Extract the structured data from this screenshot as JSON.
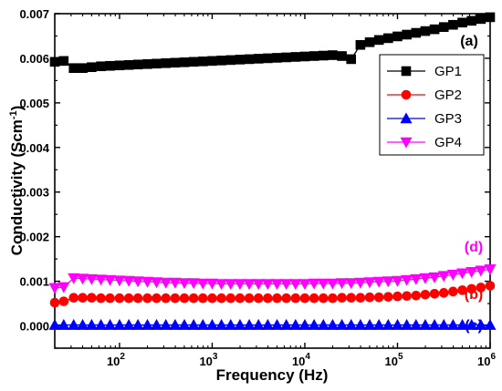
{
  "chart_data": {
    "type": "scatter",
    "title": "",
    "xlabel": "Frequency (Hz)",
    "ylabel_main": "Conductivity (Scm",
    "ylabel_sup": "-1",
    "ylabel_close": ")",
    "xscale": "log",
    "xlim": [
      20,
      1000000
    ],
    "ylim": [
      -0.0005,
      0.007
    ],
    "y_ticks": [
      "0.000",
      "0.001",
      "0.002",
      "0.003",
      "0.004",
      "0.005",
      "0.006",
      "0.007"
    ],
    "y_tick_values": [
      0,
      0.001,
      0.002,
      0.003,
      0.004,
      0.005,
      0.006,
      0.007
    ],
    "x_ticks": [
      {
        "base": "10",
        "exp": "2",
        "value": 100
      },
      {
        "base": "10",
        "exp": "3",
        "value": 1000
      },
      {
        "base": "10",
        "exp": "4",
        "value": 10000
      },
      {
        "base": "10",
        "exp": "5",
        "value": 100000
      },
      {
        "base": "10",
        "exp": "6",
        "value": 1000000
      }
    ],
    "grid": false,
    "legend_position": "top-right",
    "series": [
      {
        "name": "GP1",
        "color": "#000000",
        "marker": "square",
        "points": [
          [
            20,
            0.00592
          ],
          [
            25,
            0.00594
          ],
          [
            32,
            0.00578
          ],
          [
            40,
            0.00578
          ],
          [
            50,
            0.0058
          ],
          [
            63,
            0.00582
          ],
          [
            79,
            0.00583
          ],
          [
            100,
            0.00584
          ],
          [
            126,
            0.00585
          ],
          [
            158,
            0.00586
          ],
          [
            200,
            0.00587
          ],
          [
            251,
            0.00588
          ],
          [
            316,
            0.00589
          ],
          [
            398,
            0.0059
          ],
          [
            501,
            0.00591
          ],
          [
            631,
            0.00592
          ],
          [
            794,
            0.00593
          ],
          [
            1000,
            0.00594
          ],
          [
            1259,
            0.00595
          ],
          [
            1585,
            0.00596
          ],
          [
            1995,
            0.00597
          ],
          [
            2512,
            0.00598
          ],
          [
            3162,
            0.00599
          ],
          [
            3981,
            0.006
          ],
          [
            5012,
            0.00601
          ],
          [
            6310,
            0.00602
          ],
          [
            7943,
            0.00603
          ],
          [
            10000,
            0.00604
          ],
          [
            12589,
            0.00605
          ],
          [
            15849,
            0.00606
          ],
          [
            19953,
            0.00607
          ],
          [
            25119,
            0.00605
          ],
          [
            31623,
            0.00598
          ],
          [
            39811,
            0.0063
          ],
          [
            50119,
            0.00636
          ],
          [
            63096,
            0.00641
          ],
          [
            79433,
            0.00645
          ],
          [
            100000,
            0.00649
          ],
          [
            125893,
            0.00653
          ],
          [
            158489,
            0.00657
          ],
          [
            199526,
            0.00661
          ],
          [
            251189,
            0.00665
          ],
          [
            316228,
            0.0067
          ],
          [
            398107,
            0.00675
          ],
          [
            501187,
            0.0068
          ],
          [
            630957,
            0.00684
          ],
          [
            794328,
            0.00688
          ],
          [
            1000000,
            0.00692
          ]
        ]
      },
      {
        "name": "GP2",
        "color": "#ff0000",
        "marker": "circle",
        "points": [
          [
            20,
            0.00052
          ],
          [
            25,
            0.00055
          ],
          [
            32,
            0.00063
          ],
          [
            40,
            0.00063
          ],
          [
            50,
            0.00063
          ],
          [
            63,
            0.00062
          ],
          [
            79,
            0.00062
          ],
          [
            100,
            0.00062
          ],
          [
            126,
            0.00062
          ],
          [
            158,
            0.00062
          ],
          [
            200,
            0.00062
          ],
          [
            251,
            0.00062
          ],
          [
            316,
            0.00062
          ],
          [
            398,
            0.00062
          ],
          [
            501,
            0.00062
          ],
          [
            631,
            0.00062
          ],
          [
            794,
            0.00062
          ],
          [
            1000,
            0.00062
          ],
          [
            1259,
            0.00062
          ],
          [
            1585,
            0.00062
          ],
          [
            1995,
            0.00062
          ],
          [
            2512,
            0.00062
          ],
          [
            3162,
            0.00062
          ],
          [
            3981,
            0.00062
          ],
          [
            5012,
            0.00062
          ],
          [
            6310,
            0.00062
          ],
          [
            7943,
            0.00062
          ],
          [
            10000,
            0.00062
          ],
          [
            12589,
            0.00062
          ],
          [
            15849,
            0.00062
          ],
          [
            19953,
            0.00062
          ],
          [
            25119,
            0.00063
          ],
          [
            31623,
            0.00063
          ],
          [
            39811,
            0.00063
          ],
          [
            50119,
            0.00064
          ],
          [
            63096,
            0.00064
          ],
          [
            79433,
            0.00065
          ],
          [
            100000,
            0.00066
          ],
          [
            125893,
            0.00067
          ],
          [
            158489,
            0.00068
          ],
          [
            199526,
            0.0007
          ],
          [
            251189,
            0.00072
          ],
          [
            316228,
            0.00074
          ],
          [
            398107,
            0.00077
          ],
          [
            501187,
            0.0008
          ],
          [
            630957,
            0.00083
          ],
          [
            794328,
            0.00086
          ],
          [
            1000000,
            0.0009
          ]
        ]
      },
      {
        "name": "GP3",
        "color": "#0000ff",
        "marker": "triangle-up",
        "points": [
          [
            20,
            2e-05
          ],
          [
            25,
            2e-05
          ],
          [
            32,
            2e-05
          ],
          [
            40,
            2e-05
          ],
          [
            50,
            2e-05
          ],
          [
            63,
            2e-05
          ],
          [
            79,
            2e-05
          ],
          [
            100,
            2e-05
          ],
          [
            126,
            2e-05
          ],
          [
            158,
            2e-05
          ],
          [
            200,
            2e-05
          ],
          [
            251,
            2e-05
          ],
          [
            316,
            2e-05
          ],
          [
            398,
            2e-05
          ],
          [
            501,
            2e-05
          ],
          [
            631,
            2e-05
          ],
          [
            794,
            2e-05
          ],
          [
            1000,
            2e-05
          ],
          [
            1259,
            2e-05
          ],
          [
            1585,
            2e-05
          ],
          [
            1995,
            2e-05
          ],
          [
            2512,
            2e-05
          ],
          [
            3162,
            2e-05
          ],
          [
            3981,
            2e-05
          ],
          [
            5012,
            2e-05
          ],
          [
            6310,
            2e-05
          ],
          [
            7943,
            2e-05
          ],
          [
            10000,
            2e-05
          ],
          [
            12589,
            2e-05
          ],
          [
            15849,
            2e-05
          ],
          [
            19953,
            2e-05
          ],
          [
            25119,
            2e-05
          ],
          [
            31623,
            2e-05
          ],
          [
            39811,
            2e-05
          ],
          [
            50119,
            2e-05
          ],
          [
            63096,
            2e-05
          ],
          [
            79433,
            2e-05
          ],
          [
            100000,
            2e-05
          ],
          [
            125893,
            2e-05
          ],
          [
            158489,
            2e-05
          ],
          [
            199526,
            2e-05
          ],
          [
            251189,
            2e-05
          ],
          [
            316228,
            2e-05
          ],
          [
            398107,
            2e-05
          ],
          [
            501187,
            2e-05
          ],
          [
            630957,
            2e-05
          ],
          [
            794328,
            2e-05
          ],
          [
            1000000,
            2e-05
          ]
        ]
      },
      {
        "name": "GP4",
        "color": "#ff00ff",
        "marker": "triangle-down",
        "points": [
          [
            20,
            0.00085
          ],
          [
            25,
            0.00087
          ],
          [
            32,
            0.00107
          ],
          [
            40,
            0.00106
          ],
          [
            50,
            0.00105
          ],
          [
            63,
            0.00104
          ],
          [
            79,
            0.00103
          ],
          [
            100,
            0.00102
          ],
          [
            126,
            0.00101
          ],
          [
            158,
            0.001
          ],
          [
            200,
            0.00099
          ],
          [
            251,
            0.00098
          ],
          [
            316,
            0.00097
          ],
          [
            398,
            0.00097
          ],
          [
            501,
            0.00096
          ],
          [
            631,
            0.00096
          ],
          [
            794,
            0.00095
          ],
          [
            1000,
            0.00095
          ],
          [
            1259,
            0.00094
          ],
          [
            1585,
            0.00094
          ],
          [
            1995,
            0.00094
          ],
          [
            2512,
            0.00094
          ],
          [
            3162,
            0.00094
          ],
          [
            3981,
            0.00094
          ],
          [
            5012,
            0.00094
          ],
          [
            6310,
            0.00094
          ],
          [
            7943,
            0.00094
          ],
          [
            10000,
            0.00094
          ],
          [
            12589,
            0.00095
          ],
          [
            15849,
            0.00095
          ],
          [
            19953,
            0.00095
          ],
          [
            25119,
            0.00096
          ],
          [
            31623,
            0.00096
          ],
          [
            39811,
            0.00097
          ],
          [
            50119,
            0.00098
          ],
          [
            63096,
            0.00099
          ],
          [
            79433,
            0.001
          ],
          [
            100000,
            0.00101
          ],
          [
            125893,
            0.00103
          ],
          [
            158489,
            0.00105
          ],
          [
            199526,
            0.00107
          ],
          [
            251189,
            0.00109
          ],
          [
            316228,
            0.00112
          ],
          [
            398107,
            0.00115
          ],
          [
            501187,
            0.00118
          ],
          [
            630957,
            0.00121
          ],
          [
            794328,
            0.00124
          ],
          [
            1000000,
            0.00127
          ]
        ]
      }
    ],
    "annotations": [
      {
        "text": "(a)",
        "color": "#000000",
        "series": "GP1"
      },
      {
        "text": "(b)",
        "color": "#ff0000",
        "series": "GP2"
      },
      {
        "text": "(c)",
        "color": "#0000ff",
        "series": "GP3"
      },
      {
        "text": "(d)",
        "color": "#ff00ff",
        "series": "GP4"
      }
    ]
  }
}
